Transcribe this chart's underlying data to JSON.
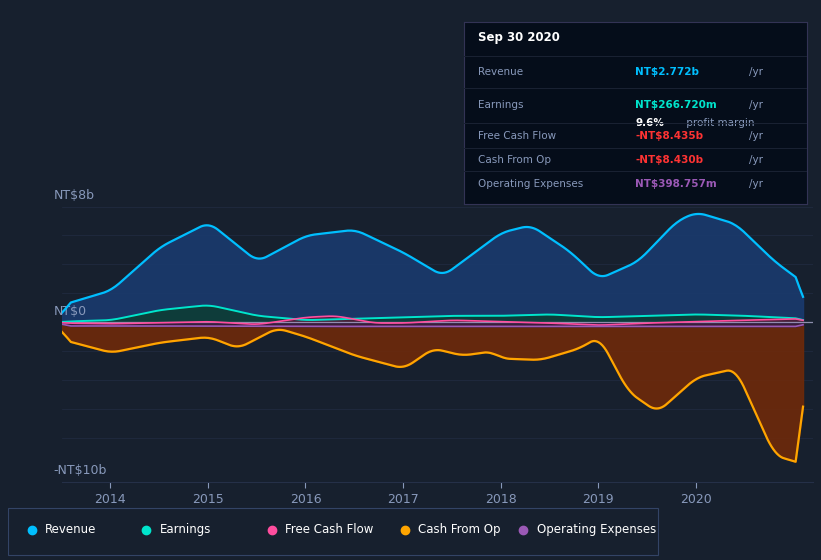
{
  "background_color": "#17202e",
  "ylabel_top": "NT$8b",
  "ylabel_bottom": "-NT$10b",
  "ylabel_zero": "NT$0",
  "x_labels": [
    "2014",
    "2015",
    "2016",
    "2017",
    "2018",
    "2019",
    "2020"
  ],
  "ylim_min": -11,
  "ylim_max": 9.5,
  "legend": [
    {
      "label": "Revenue",
      "color": "#00bfff"
    },
    {
      "label": "Earnings",
      "color": "#00e5cc"
    },
    {
      "label": "Free Cash Flow",
      "color": "#ff4d9e"
    },
    {
      "label": "Cash From Op",
      "color": "#ffa500"
    },
    {
      "label": "Operating Expenses",
      "color": "#9b59b6"
    }
  ],
  "tooltip": {
    "date": "Sep 30 2020",
    "revenue_label": "Revenue",
    "revenue_value": "NT$2.772b",
    "earnings_label": "Earnings",
    "earnings_value": "NT$266.720m",
    "profit_margin": "9.6%",
    "fcf_label": "Free Cash Flow",
    "fcf_value": "-NT$8.435b",
    "cashop_label": "Cash From Op",
    "cashop_value": "-NT$8.430b",
    "opex_label": "Operating Expenses",
    "opex_value": "NT$398.757m"
  },
  "revenue_color": "#00bfff",
  "revenue_fill": "#1a3a6e",
  "earnings_color": "#00e5cc",
  "earnings_fill": "#0d3d35",
  "fcf_color": "#ff4d9e",
  "fcf_fill": "#5a1a3a",
  "cashop_color": "#ffa500",
  "cashop_fill": "#6e2a0a",
  "opex_color": "#9b59b6",
  "opex_fill": "#2a1a4a",
  "zero_line_color": "#aaaacc",
  "grid_color": "#253048",
  "spine_color": "#253048",
  "tick_color": "#8899bb",
  "tooltip_bg": "#050d1a",
  "tooltip_border": "#333355",
  "tooltip_label_color": "#8899bb",
  "divider_color": "#1a2233"
}
